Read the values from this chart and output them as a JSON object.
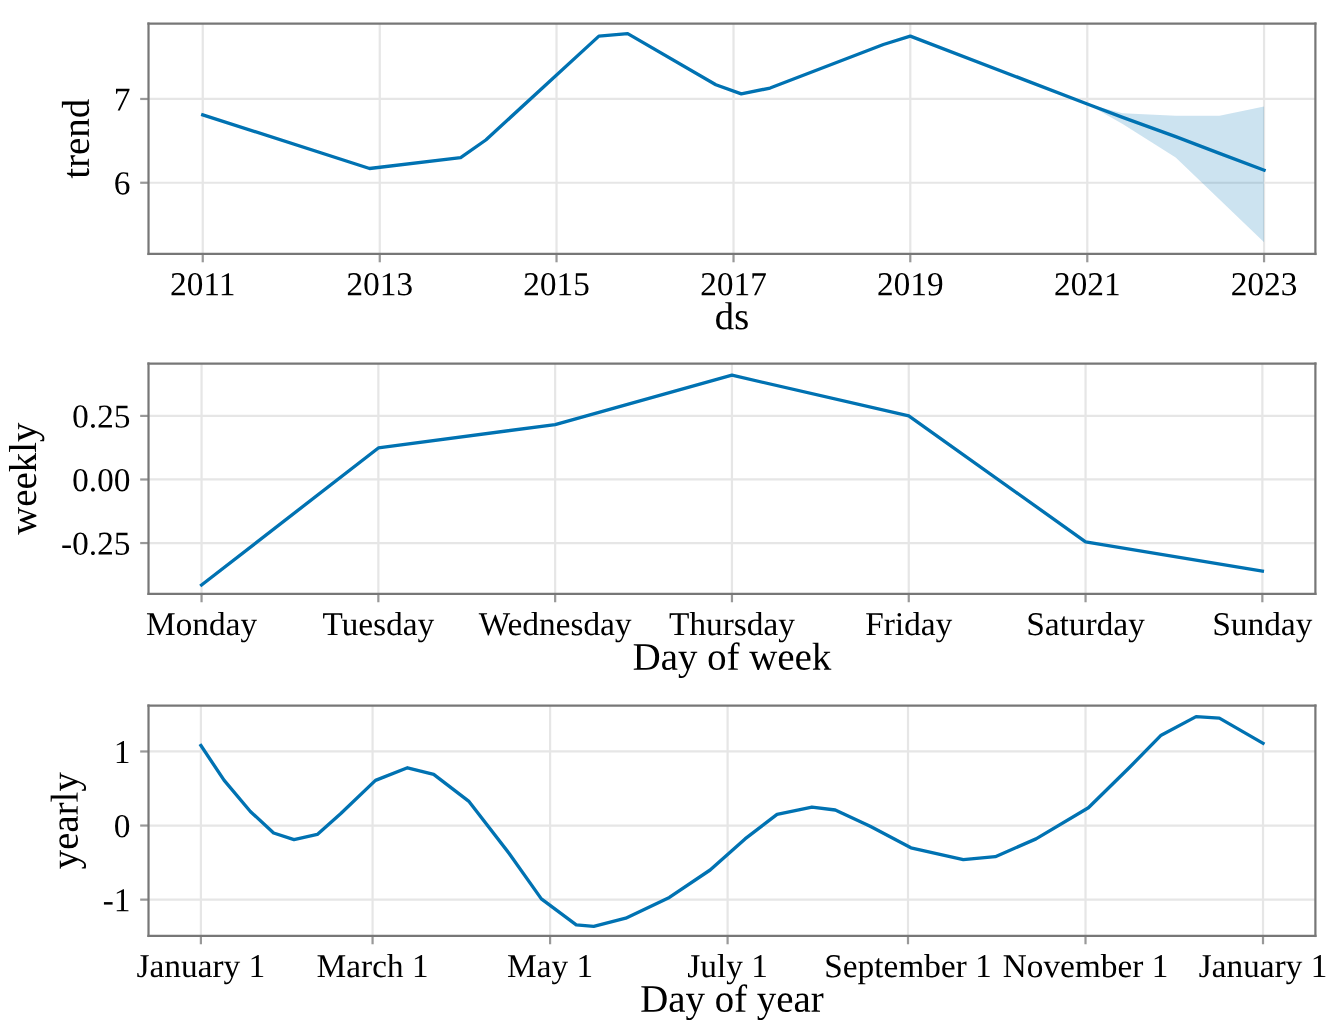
{
  "chart_data": [
    {
      "type": "line",
      "xlabel": "ds",
      "ylabel": "trend",
      "x": [
        "2011-01-01",
        "2012-11-20",
        "2013-12-01",
        "2014-03-15",
        "2015-06-25",
        "2015-10-22",
        "2016-10-20",
        "2017-02-02",
        "2017-06-01",
        "2018-09-12",
        "2019-01-01",
        "2021-01-01",
        "2021-05-27",
        "2022-01-01",
        "2022-07-01",
        "2023-01-01"
      ],
      "series": [
        {
          "color": "#0072b2",
          "values": [
            6.81,
            6.17,
            6.3,
            6.51,
            7.75,
            7.78,
            7.17,
            7.06,
            7.13,
            7.65,
            7.75,
            6.94,
            6.78,
            6.55,
            6.35,
            6.15
          ],
          "lower": [
            null,
            null,
            null,
            null,
            null,
            null,
            null,
            null,
            null,
            null,
            null,
            6.94,
            6.7,
            6.3,
            5.8,
            5.29
          ],
          "upper": [
            null,
            null,
            null,
            null,
            null,
            null,
            null,
            null,
            null,
            null,
            null,
            6.94,
            6.83,
            6.8,
            6.8,
            6.91
          ]
        }
      ],
      "xlim": [
        "2010-05-22",
        "2023-08-01"
      ],
      "ylim": [
        5.15,
        7.9
      ],
      "xticks": [
        {
          "value": "2011-01-01",
          "label": "2011"
        },
        {
          "value": "2013-01-01",
          "label": "2013"
        },
        {
          "value": "2015-01-01",
          "label": "2015"
        },
        {
          "value": "2017-01-01",
          "label": "2017"
        },
        {
          "value": "2019-01-01",
          "label": "2019"
        },
        {
          "value": "2021-01-01",
          "label": "2021"
        },
        {
          "value": "2023-01-01",
          "label": "2023"
        }
      ],
      "yticks": [
        6,
        7
      ],
      "grid": true
    },
    {
      "type": "line",
      "xlabel": "Day of week",
      "ylabel": "weekly",
      "categories": [
        "Monday",
        "Tuesday",
        "Wednesday",
        "Thursday",
        "Friday",
        "Saturday",
        "Sunday"
      ],
      "series": [
        {
          "color": "#0072b2",
          "values": [
            -0.415,
            0.124,
            0.216,
            0.41,
            0.25,
            -0.245,
            -0.36
          ]
        }
      ],
      "ylim": [
        -0.45,
        0.456
      ],
      "yticks": [
        -0.25,
        {
          "value": 0,
          "label": "0.00"
        },
        0.25
      ],
      "grid": true
    },
    {
      "type": "line",
      "xlabel": "Day of year",
      "ylabel": "yearly",
      "x": [
        "2017-01-01",
        "2017-01-09",
        "2017-01-18",
        "2017-01-26",
        "2017-02-02",
        "2017-02-10",
        "2017-02-18",
        "2017-03-02",
        "2017-03-13",
        "2017-03-22",
        "2017-04-03",
        "2017-04-17",
        "2017-04-28",
        "2017-05-10",
        "2017-05-16",
        "2017-05-27",
        "2017-06-11",
        "2017-06-25",
        "2017-07-07",
        "2017-07-18",
        "2017-07-30",
        "2017-08-07",
        "2017-08-19",
        "2017-09-02",
        "2017-09-20",
        "2017-10-01",
        "2017-10-15",
        "2017-11-02",
        "2017-11-16",
        "2017-11-27",
        "2017-12-09",
        "2017-12-17",
        "2018-01-01"
      ],
      "series": [
        {
          "color": "#0072b2",
          "values": [
            1.08,
            0.61,
            0.19,
            -0.1,
            -0.19,
            -0.12,
            0.16,
            0.61,
            0.78,
            0.69,
            0.33,
            -0.38,
            -0.99,
            -1.34,
            -1.36,
            -1.25,
            -0.97,
            -0.6,
            -0.18,
            0.15,
            0.25,
            0.21,
            -0.01,
            -0.3,
            -0.46,
            -0.42,
            -0.18,
            0.24,
            0.78,
            1.22,
            1.47,
            1.45,
            1.11
          ]
        }
      ],
      "xlim": [
        "2016-12-14",
        "2018-01-19"
      ],
      "ylim": [
        -1.49,
        1.62
      ],
      "xticks": [
        {
          "value": "2017-01-01",
          "label": "January 1"
        },
        {
          "value": "2017-03-01",
          "label": "March 1"
        },
        {
          "value": "2017-05-01",
          "label": "May 1"
        },
        {
          "value": "2017-07-01",
          "label": "July 1"
        },
        {
          "value": "2017-09-01",
          "label": "September 1"
        },
        {
          "value": "2017-11-01",
          "label": "November 1"
        },
        {
          "value": "2018-01-01",
          "label": "January 1"
        }
      ],
      "yticks": [
        -1,
        0,
        1
      ],
      "grid": true
    }
  ]
}
